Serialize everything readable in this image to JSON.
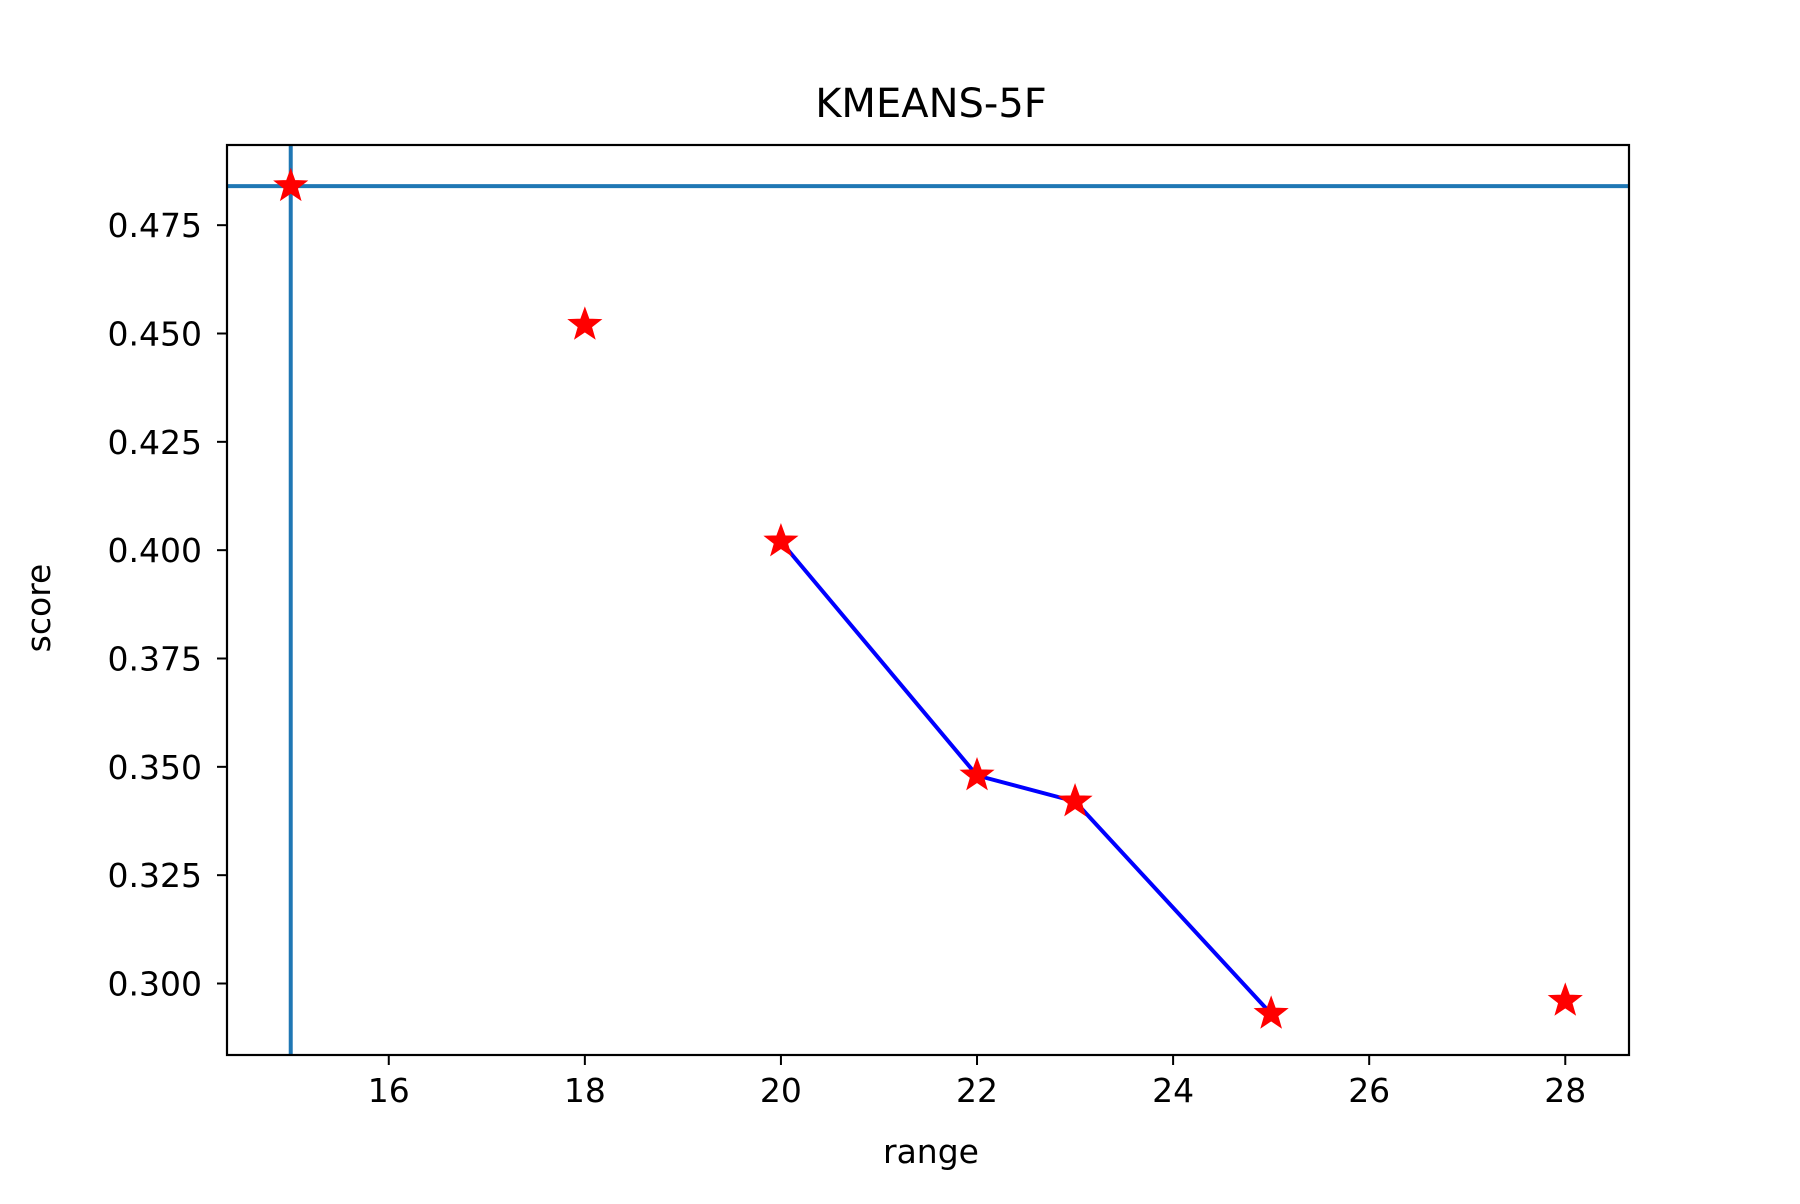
{
  "chart_data": {
    "type": "line",
    "title": "KMEANS-5F",
    "xlabel": "range",
    "ylabel": "score",
    "xlim": [
      14.35,
      28.65
    ],
    "ylim": [
      0.2835,
      0.4935
    ],
    "x_ticks": [
      16,
      18,
      20,
      22,
      24,
      26,
      28
    ],
    "y_ticks": [
      0.3,
      0.325,
      0.35,
      0.375,
      0.4,
      0.425,
      0.45,
      0.475
    ],
    "x_tick_labels": [
      "16",
      "18",
      "20",
      "22",
      "24",
      "26",
      "28"
    ],
    "y_tick_labels": [
      "0.300",
      "0.325",
      "0.350",
      "0.375",
      "0.400",
      "0.425",
      "0.450",
      "0.475"
    ],
    "grid": false,
    "series": [
      {
        "marker": "star",
        "color": "#ff0000",
        "points": [
          {
            "x": 15,
            "y": 0.484
          },
          {
            "x": 18,
            "y": 0.452
          },
          {
            "x": 20,
            "y": 0.402
          },
          {
            "x": 22,
            "y": 0.348
          },
          {
            "x": 23,
            "y": 0.342
          },
          {
            "x": 25,
            "y": 0.293
          },
          {
            "x": 28,
            "y": 0.296
          }
        ]
      },
      {
        "line_color": "#0000ff",
        "points": [
          {
            "x": 20,
            "y": 0.402
          },
          {
            "x": 22,
            "y": 0.348
          },
          {
            "x": 23,
            "y": 0.342
          },
          {
            "x": 25,
            "y": 0.293
          }
        ]
      }
    ],
    "reference_lines": [
      {
        "orientation": "vertical",
        "x": 15,
        "color": "#1f77b4"
      },
      {
        "orientation": "horizontal",
        "y": 0.484,
        "color": "#1f77b4"
      }
    ]
  }
}
